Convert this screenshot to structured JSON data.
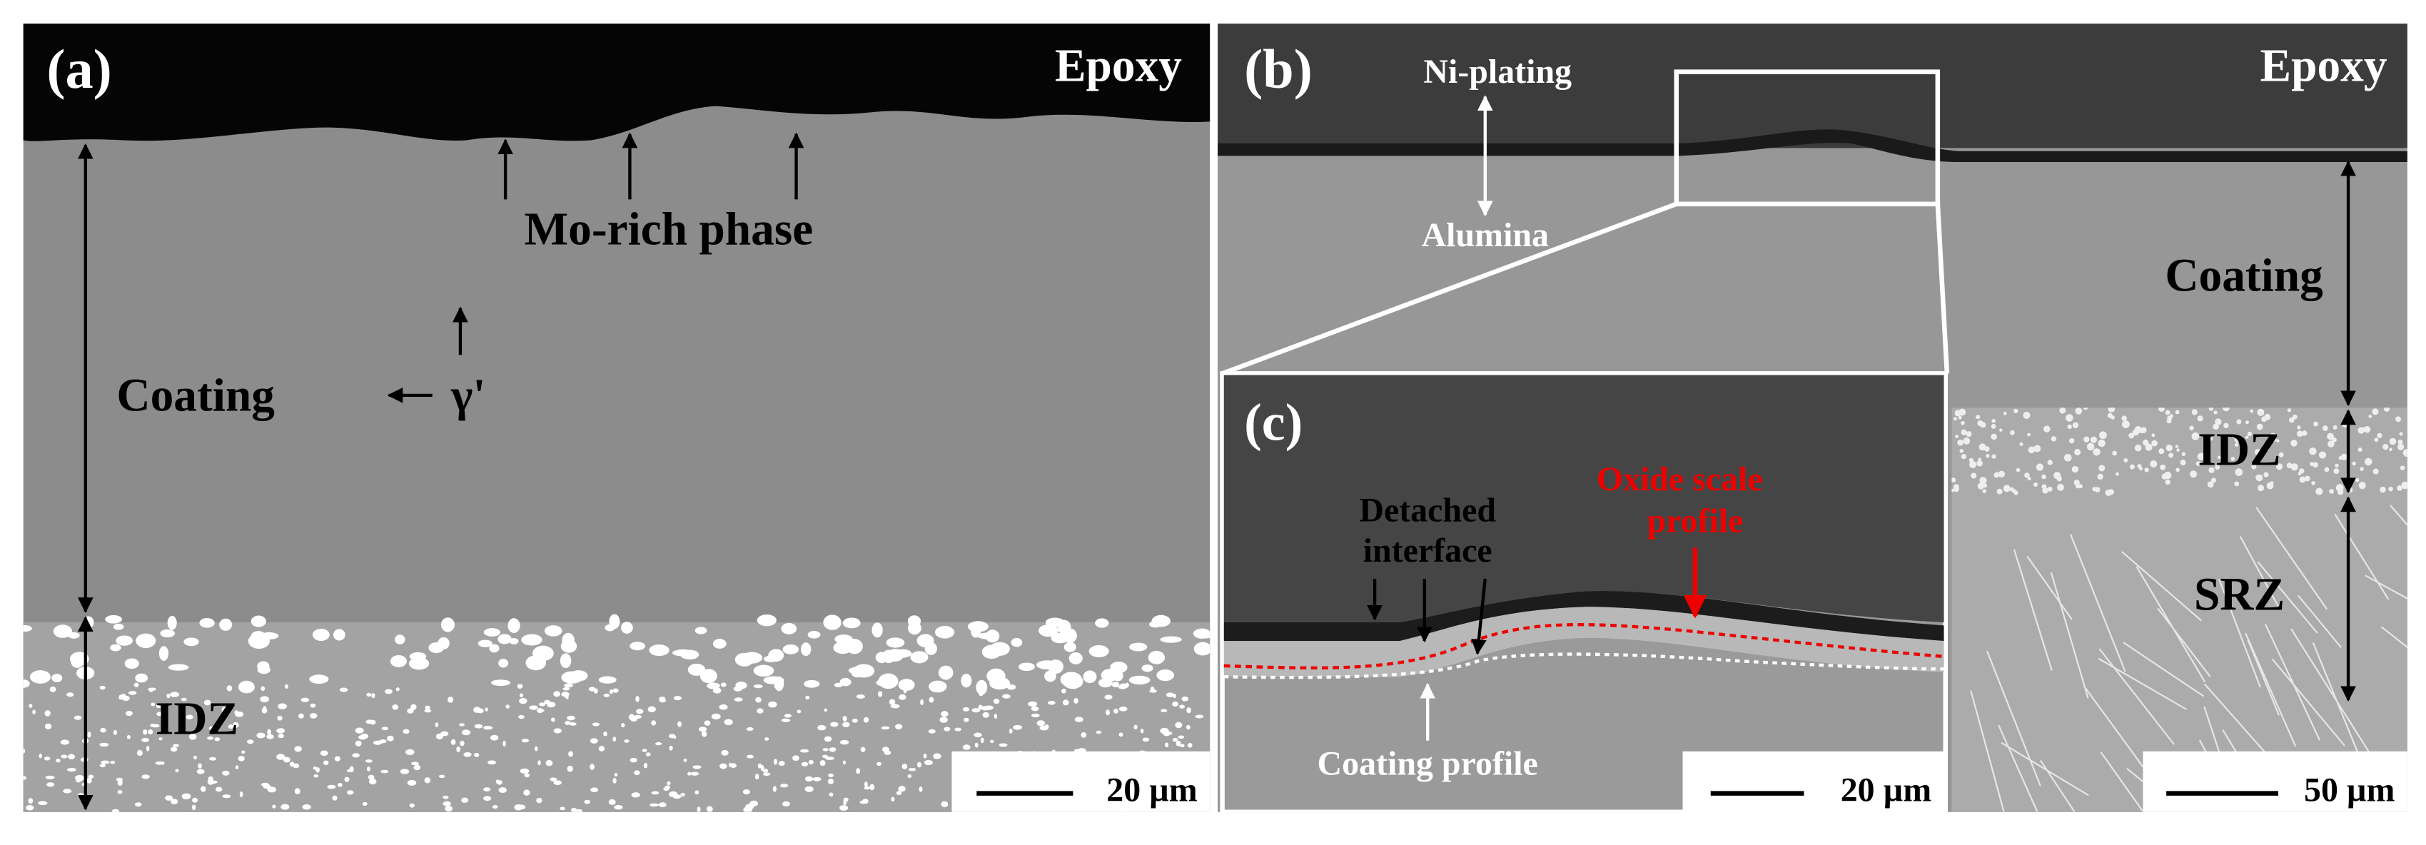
{
  "panels": [
    {
      "label": "(a)",
      "texts": {
        "epoxy": "Epoxy",
        "phase": "Mo-rich phase",
        "coating": "Coating",
        "gamma": "γ'",
        "idz": "IDZ"
      },
      "scale_bar": "20 µm"
    },
    {
      "label": "(b)",
      "texts": {
        "plating": "Ni-plating",
        "alumina": "Alumina",
        "epoxy": "Epoxy",
        "coating": "Coating",
        "idz": "IDZ",
        "srz": "SRZ"
      },
      "scale_bar": "50 µm"
    },
    {
      "label": "(c)",
      "texts": {
        "detached": [
          "Detached",
          "interface"
        ],
        "oxide": [
          "Oxide scale",
          "profile"
        ],
        "coating": "Coating profile"
      },
      "scale_bar": "20 µm"
    }
  ]
}
